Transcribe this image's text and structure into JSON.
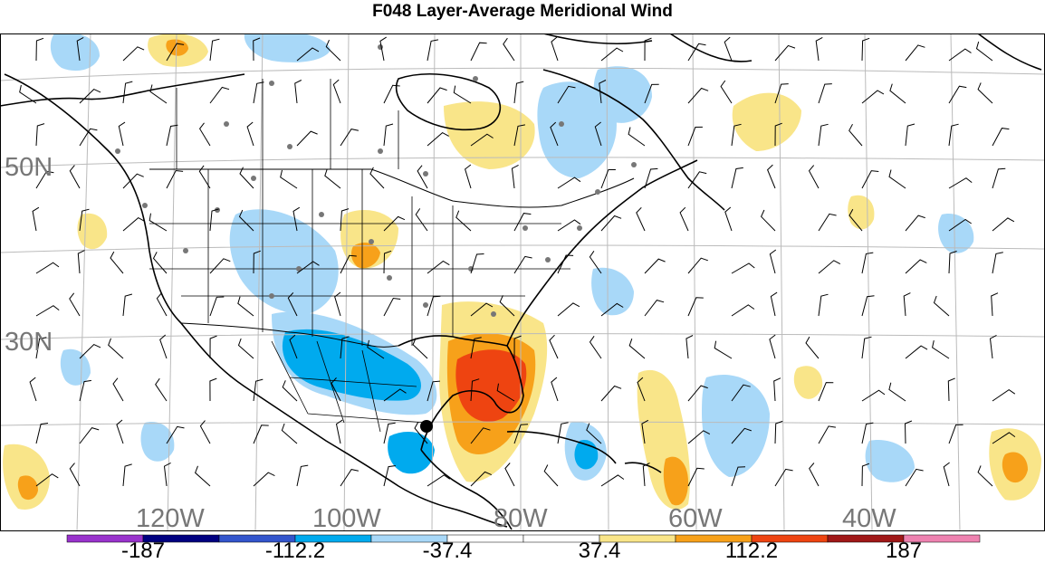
{
  "title": "F048 Layer-Average Meridional Wind",
  "map": {
    "lat_labels": [
      "50N",
      "30N"
    ],
    "lon_labels": [
      "120W",
      "100W",
      "80W",
      "60W",
      "40W"
    ],
    "grid_lat_values": [
      60,
      50,
      40,
      30,
      20
    ],
    "grid_lon_values": [
      130,
      120,
      110,
      100,
      90,
      80,
      70,
      60,
      50,
      40
    ],
    "station_marker": "black-dot"
  },
  "colorbar": {
    "colors": [
      "#9933cc",
      "#000080",
      "#3355cc",
      "#00aaee",
      "#a8d8f8",
      "#ffffff",
      "#ffffff",
      "#f9e589",
      "#f7a11a",
      "#ee4411",
      "#a01818",
      "#ee82b0"
    ],
    "labels": [
      "-187",
      "-112.2",
      "-37.4",
      "37.4",
      "112.2",
      "187"
    ]
  },
  "colors": {
    "land_outline": "#000000",
    "grid": "#bbbbbb",
    "station_dot": "#777777",
    "barb": "#000000"
  }
}
